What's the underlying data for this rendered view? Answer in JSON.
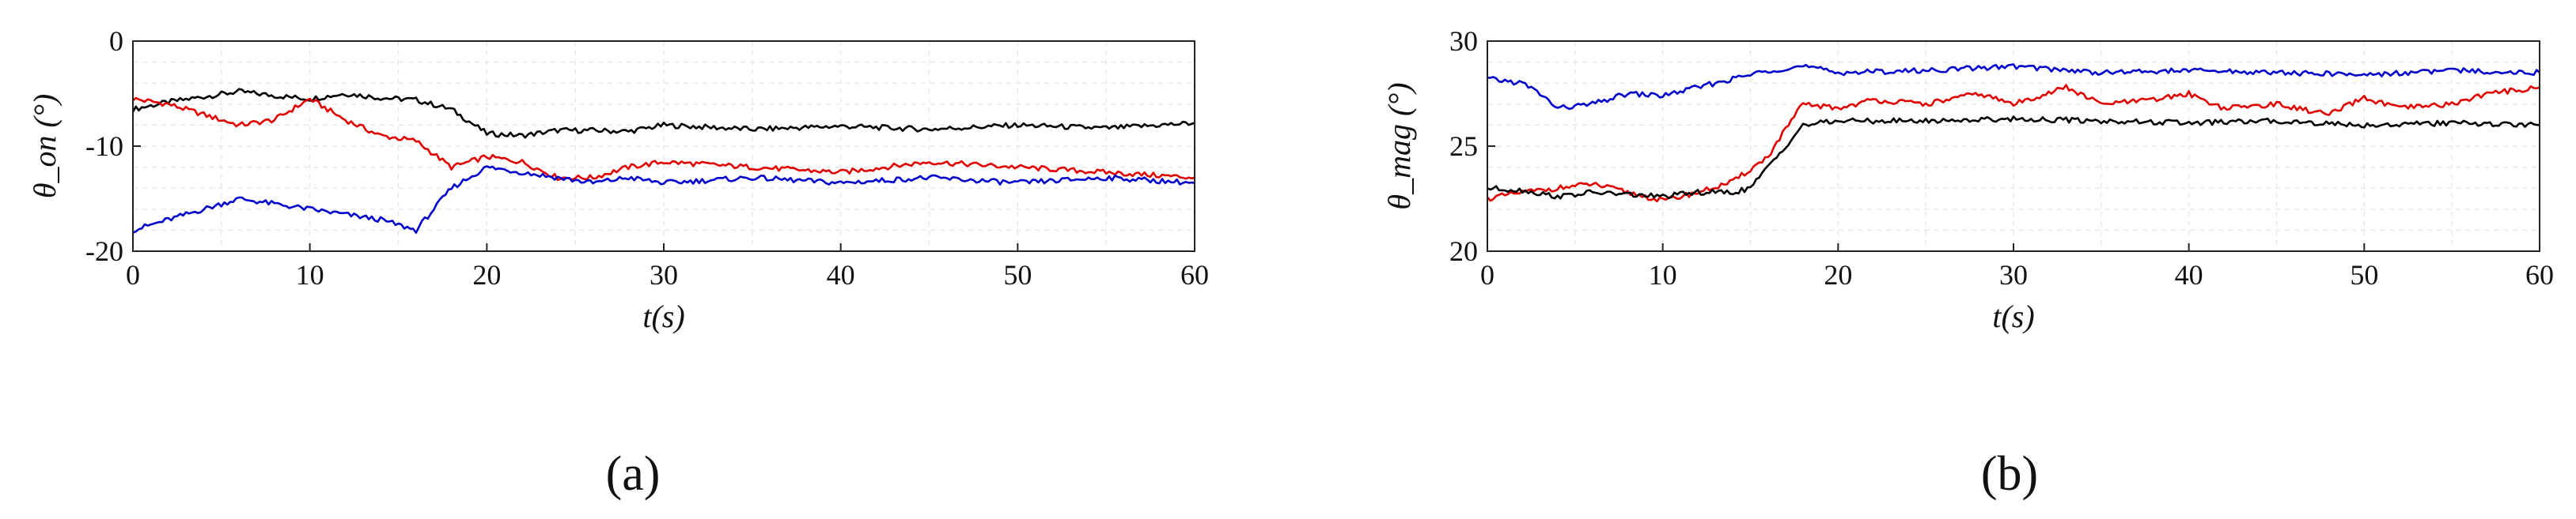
{
  "chart_data": [
    {
      "id": "a",
      "type": "line",
      "panel_label": "(a)",
      "xlabel": "t(s)",
      "ylabel": "θ_on (°)",
      "xlim": [
        0,
        60
      ],
      "ylim": [
        -20,
        0
      ],
      "xticks": [
        0,
        10,
        20,
        30,
        40,
        50,
        60
      ],
      "yticks": [
        0,
        -10,
        -20
      ],
      "grid": true,
      "series": [
        {
          "color": "#000000",
          "x": [
            0,
            2,
            4,
            6,
            8,
            10,
            12,
            14,
            16,
            18,
            20,
            22,
            24,
            26,
            28,
            30,
            35,
            40,
            45,
            50,
            55,
            60
          ],
          "values": [
            -6.5,
            -5.8,
            -5.3,
            -4.8,
            -5.2,
            -5.5,
            -5.0,
            -5.4,
            -5.6,
            -6.5,
            -8.8,
            -9.0,
            -8.5,
            -8.5,
            -8.6,
            -8.0,
            -8.4,
            -8.1,
            -8.4,
            -8.0,
            -8.3,
            -7.8
          ]
        },
        {
          "color": "#e00000",
          "x": [
            0,
            2,
            4,
            6,
            8,
            10,
            12,
            14,
            16,
            18,
            20,
            22,
            24,
            26,
            28,
            30,
            35,
            40,
            45,
            50,
            55,
            60
          ],
          "values": [
            -5.5,
            -6.0,
            -7.0,
            -8.0,
            -7.5,
            -5.5,
            -7.5,
            -9.0,
            -9.5,
            -12.0,
            -11.0,
            -11.5,
            -13.0,
            -13.0,
            -12.0,
            -11.5,
            -12.0,
            -12.5,
            -11.5,
            -12.0,
            -12.5,
            -13.0
          ]
        },
        {
          "color": "#0000cc",
          "x": [
            0,
            2,
            4,
            6,
            8,
            10,
            12,
            14,
            16,
            18,
            20,
            22,
            24,
            26,
            28,
            30,
            35,
            40,
            45,
            50,
            55,
            60
          ],
          "values": [
            -18.0,
            -17.0,
            -16.0,
            -15.0,
            -15.5,
            -16.0,
            -16.5,
            -17.0,
            -18.0,
            -14.0,
            -12.0,
            -12.5,
            -13.0,
            -13.5,
            -13.0,
            -13.5,
            -13.0,
            -13.5,
            -13.0,
            -13.5,
            -13.0,
            -13.5
          ]
        }
      ]
    },
    {
      "id": "b",
      "type": "line",
      "panel_label": "(b)",
      "xlabel": "t(s)",
      "ylabel": "θ_mag (°)",
      "xlim": [
        0,
        60
      ],
      "ylim": [
        20,
        30
      ],
      "xticks": [
        0,
        10,
        20,
        30,
        40,
        50,
        60
      ],
      "yticks": [
        30,
        25,
        20
      ],
      "grid": true,
      "series": [
        {
          "color": "#0000cc",
          "x": [
            0,
            2,
            3,
            4,
            6,
            8,
            10,
            12,
            14,
            16,
            18,
            20,
            25,
            30,
            35,
            40,
            45,
            50,
            55,
            60
          ],
          "values": [
            28.2,
            28.0,
            27.5,
            26.8,
            27.0,
            27.5,
            27.4,
            27.8,
            28.2,
            28.6,
            28.8,
            28.5,
            28.6,
            28.8,
            28.5,
            28.6,
            28.5,
            28.4,
            28.6,
            28.5
          ]
        },
        {
          "color": "#e00000",
          "x": [
            0,
            2,
            4,
            6,
            8,
            10,
            12,
            14,
            16,
            17,
            18,
            20,
            22,
            25,
            28,
            30,
            33,
            35,
            38,
            40,
            42,
            45,
            48,
            50,
            52,
            55,
            57,
            60
          ],
          "values": [
            22.5,
            22.8,
            23.0,
            23.2,
            22.8,
            22.4,
            22.8,
            23.3,
            24.5,
            25.8,
            27.0,
            26.8,
            27.2,
            27.0,
            27.5,
            27.0,
            27.8,
            27.0,
            27.2,
            27.5,
            26.8,
            27.0,
            26.5,
            27.3,
            26.8,
            27.0,
            27.5,
            27.8
          ]
        },
        {
          "color": "#000000",
          "x": [
            0,
            2,
            4,
            6,
            8,
            10,
            12,
            14,
            15,
            16,
            17,
            18,
            20,
            25,
            30,
            35,
            40,
            45,
            50,
            55,
            60
          ],
          "values": [
            23.0,
            22.9,
            22.6,
            22.8,
            22.7,
            22.6,
            22.8,
            22.8,
            23.0,
            24.0,
            25.0,
            26.0,
            26.2,
            26.2,
            26.3,
            26.2,
            26.1,
            26.2,
            26.0,
            26.1,
            26.0
          ]
        }
      ]
    }
  ]
}
